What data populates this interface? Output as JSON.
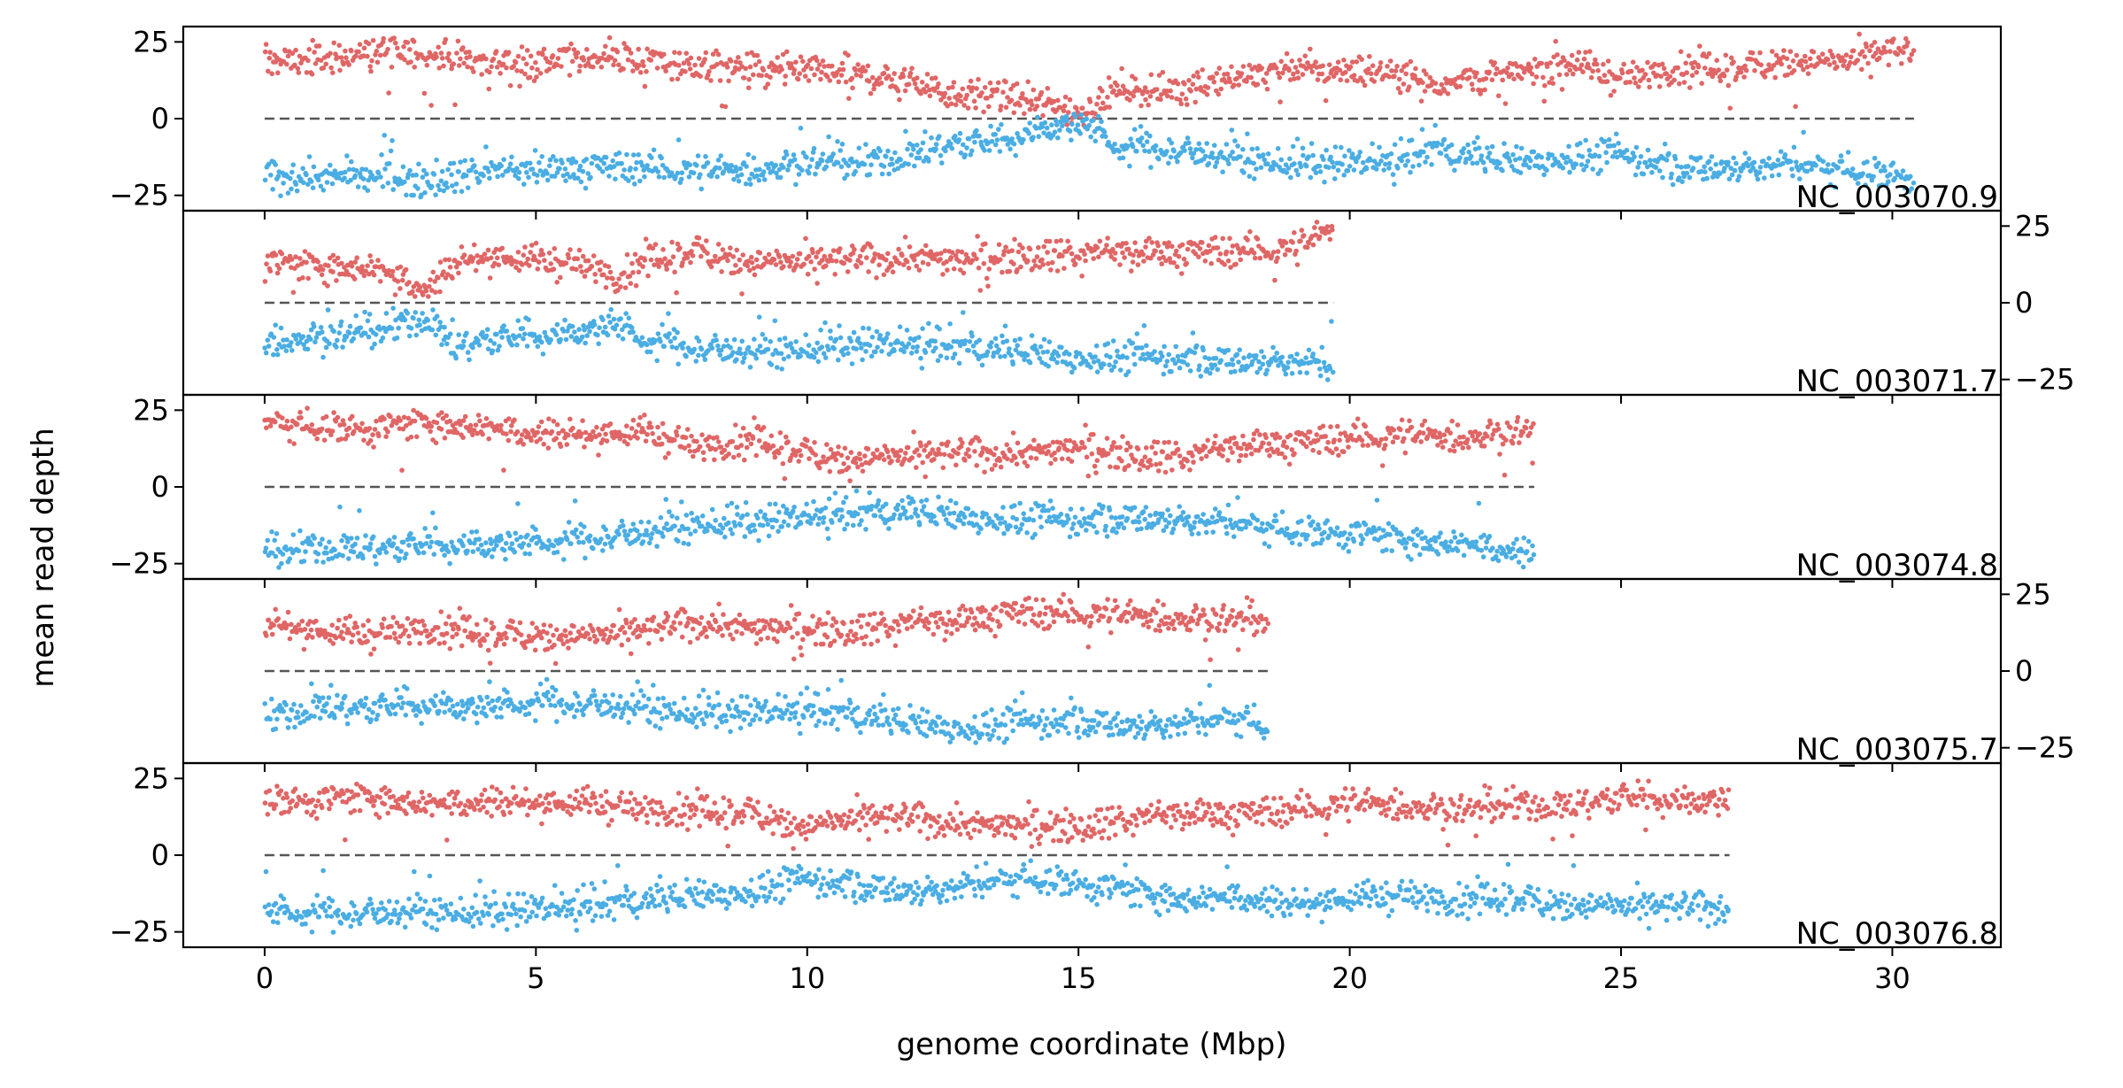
{
  "chart_data": {
    "type": "scatter",
    "xlabel": "genome coordinate (Mbp)",
    "ylabel": "mean read depth",
    "x_range": [
      -1.5,
      32
    ],
    "x_ticks": [
      0,
      5,
      10,
      15,
      20,
      25,
      30
    ],
    "y_range": [
      -30,
      30
    ],
    "y_ticks": [
      -25,
      0,
      25
    ],
    "colors": {
      "upper": "#e06666",
      "lower": "#4aade3",
      "zero_line": "#555555"
    },
    "panels": [
      {
        "label": "NC_003070.9",
        "length_mbp": 30.4,
        "y_axis_side": "left",
        "upper_profile": [
          [
            0,
            19
          ],
          [
            1,
            19
          ],
          [
            2,
            22
          ],
          [
            3,
            21
          ],
          [
            4,
            19
          ],
          [
            5,
            18
          ],
          [
            6,
            20
          ],
          [
            7,
            19
          ],
          [
            8,
            17
          ],
          [
            9,
            16
          ],
          [
            10,
            15
          ],
          [
            11,
            14
          ],
          [
            12,
            12
          ],
          [
            12.7,
            8
          ],
          [
            13.5,
            8
          ],
          [
            14.2,
            5
          ],
          [
            14.7,
            3
          ],
          [
            15.2,
            3
          ],
          [
            15.7,
            10
          ],
          [
            16.5,
            9
          ],
          [
            18,
            14
          ],
          [
            19,
            16
          ],
          [
            20,
            16
          ],
          [
            21,
            15
          ],
          [
            21.5,
            11
          ],
          [
            22,
            13
          ],
          [
            23,
            14
          ],
          [
            24,
            19
          ],
          [
            25,
            13
          ],
          [
            26,
            16
          ],
          [
            27,
            16
          ],
          [
            28,
            19
          ],
          [
            29,
            18
          ],
          [
            30,
            22
          ],
          [
            30.4,
            21
          ]
        ],
        "lower_profile": [
          [
            0,
            -19
          ],
          [
            1,
            -19
          ],
          [
            2,
            -19
          ],
          [
            3,
            -20
          ],
          [
            4,
            -17
          ],
          [
            5,
            -17
          ],
          [
            6,
            -16
          ],
          [
            7,
            -16
          ],
          [
            8,
            -17
          ],
          [
            9,
            -17
          ],
          [
            10,
            -14
          ],
          [
            11,
            -15
          ],
          [
            12,
            -12
          ],
          [
            12.7,
            -8
          ],
          [
            13.5,
            -8
          ],
          [
            14.2,
            -4
          ],
          [
            14.7,
            -2
          ],
          [
            15.2,
            -2
          ],
          [
            15.7,
            -9
          ],
          [
            16.5,
            -10
          ],
          [
            18,
            -13
          ],
          [
            19,
            -15
          ],
          [
            20,
            -15
          ],
          [
            21,
            -14
          ],
          [
            21.5,
            -10
          ],
          [
            22,
            -12
          ],
          [
            23,
            -14
          ],
          [
            24,
            -13
          ],
          [
            25,
            -12
          ],
          [
            26,
            -16
          ],
          [
            27,
            -16
          ],
          [
            28,
            -15
          ],
          [
            29,
            -16
          ],
          [
            30,
            -18
          ],
          [
            30.4,
            -19
          ]
        ],
        "spread": 5
      },
      {
        "label": "NC_003071.7",
        "length_mbp": 19.7,
        "y_axis_side": "right",
        "upper_profile": [
          [
            0,
            13
          ],
          [
            1,
            12
          ],
          [
            2,
            12
          ],
          [
            3,
            5
          ],
          [
            3.5,
            13
          ],
          [
            4,
            15
          ],
          [
            5,
            14
          ],
          [
            6,
            12
          ],
          [
            6.5,
            8
          ],
          [
            7,
            13
          ],
          [
            8,
            17
          ],
          [
            9,
            13
          ],
          [
            10,
            13
          ],
          [
            11,
            14
          ],
          [
            12,
            15
          ],
          [
            13,
            14
          ],
          [
            14,
            16
          ],
          [
            15,
            16
          ],
          [
            16,
            17
          ],
          [
            17,
            16
          ],
          [
            18,
            17
          ],
          [
            19,
            18
          ],
          [
            19.7,
            24
          ]
        ],
        "lower_profile": [
          [
            0,
            -13
          ],
          [
            1,
            -11
          ],
          [
            2,
            -10
          ],
          [
            3,
            -5
          ],
          [
            3.5,
            -15
          ],
          [
            4,
            -12
          ],
          [
            5,
            -11
          ],
          [
            6,
            -9
          ],
          [
            6.5,
            -7
          ],
          [
            7,
            -12
          ],
          [
            8,
            -15
          ],
          [
            9,
            -16
          ],
          [
            10,
            -15
          ],
          [
            11,
            -14
          ],
          [
            12,
            -14
          ],
          [
            13,
            -15
          ],
          [
            14,
            -16
          ],
          [
            15,
            -18
          ],
          [
            16,
            -18
          ],
          [
            17,
            -18
          ],
          [
            18,
            -19
          ],
          [
            19,
            -19
          ],
          [
            19.7,
            -21
          ]
        ],
        "spread": 5
      },
      {
        "label": "NC_003074.8",
        "length_mbp": 23.4,
        "y_axis_side": "left",
        "upper_profile": [
          [
            0,
            21
          ],
          [
            1,
            20
          ],
          [
            2,
            19
          ],
          [
            3,
            21
          ],
          [
            4,
            20
          ],
          [
            5,
            18
          ],
          [
            6,
            17
          ],
          [
            7,
            18
          ],
          [
            8,
            13
          ],
          [
            9,
            15
          ],
          [
            10,
            11
          ],
          [
            11,
            9
          ],
          [
            12,
            10
          ],
          [
            13,
            11
          ],
          [
            14,
            11
          ],
          [
            15,
            13
          ],
          [
            16,
            11
          ],
          [
            17,
            10
          ],
          [
            18,
            14
          ],
          [
            19,
            14
          ],
          [
            20,
            16
          ],
          [
            21,
            17
          ],
          [
            22,
            16
          ],
          [
            23,
            18
          ],
          [
            23.4,
            19
          ]
        ],
        "lower_profile": [
          [
            0,
            -22
          ],
          [
            1,
            -20
          ],
          [
            2,
            -20
          ],
          [
            3,
            -19
          ],
          [
            4,
            -19
          ],
          [
            5,
            -18
          ],
          [
            6,
            -17
          ],
          [
            7,
            -15
          ],
          [
            8,
            -12
          ],
          [
            9,
            -12
          ],
          [
            10,
            -10
          ],
          [
            11,
            -9
          ],
          [
            12,
            -8
          ],
          [
            13,
            -10
          ],
          [
            14,
            -11
          ],
          [
            15,
            -11
          ],
          [
            16,
            -10
          ],
          [
            17,
            -11
          ],
          [
            18,
            -12
          ],
          [
            19,
            -14
          ],
          [
            20,
            -15
          ],
          [
            21,
            -17
          ],
          [
            22,
            -18
          ],
          [
            23,
            -20
          ],
          [
            23.4,
            -22
          ]
        ],
        "spread": 5
      },
      {
        "label": "NC_003075.7",
        "length_mbp": 18.5,
        "y_axis_side": "right",
        "upper_profile": [
          [
            0,
            16
          ],
          [
            1,
            13
          ],
          [
            2,
            12
          ],
          [
            3,
            14
          ],
          [
            4,
            12
          ],
          [
            5,
            12
          ],
          [
            6,
            11
          ],
          [
            7,
            13
          ],
          [
            8,
            16
          ],
          [
            9,
            14
          ],
          [
            10,
            14
          ],
          [
            11,
            14
          ],
          [
            12,
            16
          ],
          [
            13,
            17
          ],
          [
            14,
            19
          ],
          [
            15,
            19
          ],
          [
            16,
            18
          ],
          [
            17,
            17
          ],
          [
            18,
            17
          ],
          [
            18.5,
            16
          ]
        ],
        "lower_profile": [
          [
            0,
            -16
          ],
          [
            1,
            -12
          ],
          [
            2,
            -12
          ],
          [
            3,
            -11
          ],
          [
            4,
            -12
          ],
          [
            5,
            -10
          ],
          [
            6,
            -11
          ],
          [
            7,
            -12
          ],
          [
            8,
            -14
          ],
          [
            9,
            -14
          ],
          [
            10,
            -13
          ],
          [
            11,
            -15
          ],
          [
            12,
            -17
          ],
          [
            13,
            -19
          ],
          [
            14,
            -17
          ],
          [
            15,
            -16
          ],
          [
            16,
            -18
          ],
          [
            17,
            -17
          ],
          [
            18,
            -15
          ],
          [
            18.5,
            -18
          ]
        ],
        "spread": 5
      },
      {
        "label": "NC_003076.8",
        "length_mbp": 27.0,
        "y_axis_side": "left",
        "upper_profile": [
          [
            0,
            18
          ],
          [
            1,
            18
          ],
          [
            2,
            19
          ],
          [
            3,
            17
          ],
          [
            4,
            18
          ],
          [
            5,
            17
          ],
          [
            6,
            17
          ],
          [
            7,
            15
          ],
          [
            8,
            14
          ],
          [
            9,
            14
          ],
          [
            10,
            9
          ],
          [
            11,
            12
          ],
          [
            12,
            12
          ],
          [
            13,
            10
          ],
          [
            14,
            10
          ],
          [
            15,
            10
          ],
          [
            16,
            12
          ],
          [
            17,
            14
          ],
          [
            18,
            13
          ],
          [
            19,
            15
          ],
          [
            20,
            17
          ],
          [
            21,
            16
          ],
          [
            22,
            15
          ],
          [
            23,
            16
          ],
          [
            24,
            16
          ],
          [
            25,
            19
          ],
          [
            26,
            18
          ],
          [
            27,
            18
          ]
        ],
        "lower_profile": [
          [
            0,
            -18
          ],
          [
            1,
            -19
          ],
          [
            2,
            -19
          ],
          [
            3,
            -18
          ],
          [
            4,
            -19
          ],
          [
            5,
            -18
          ],
          [
            6,
            -17
          ],
          [
            7,
            -15
          ],
          [
            8,
            -13
          ],
          [
            9,
            -12
          ],
          [
            10,
            -8
          ],
          [
            11,
            -10
          ],
          [
            12,
            -12
          ],
          [
            13,
            -10
          ],
          [
            14,
            -7
          ],
          [
            15,
            -9
          ],
          [
            16,
            -12
          ],
          [
            17,
            -14
          ],
          [
            18,
            -13
          ],
          [
            19,
            -16
          ],
          [
            20,
            -14
          ],
          [
            21,
            -13
          ],
          [
            22,
            -15
          ],
          [
            23,
            -14
          ],
          [
            24,
            -16
          ],
          [
            25,
            -17
          ],
          [
            26,
            -17
          ],
          [
            27,
            -17
          ]
        ],
        "spread": 5
      }
    ]
  }
}
